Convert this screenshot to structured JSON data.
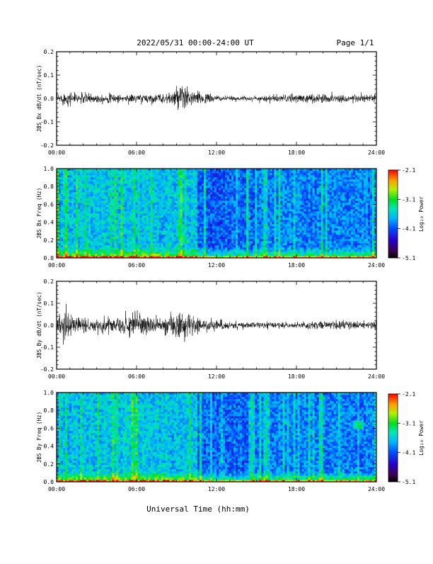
{
  "header": {
    "title": "2022/05/31  00:00-24:00 UT",
    "page": "Page 1/1"
  },
  "x_axis": {
    "label": "Universal Time (hh:mm)",
    "ticks": [
      "00:00",
      "06:00",
      "12:00",
      "18:00",
      "24:00"
    ]
  },
  "colorbar": {
    "label": "Log₁₀ Power",
    "ticks": [
      "-2.1",
      "-3.1",
      "-4.1",
      "-5.1"
    ],
    "range": [
      -5.1,
      -2.1
    ]
  },
  "chart_data": [
    {
      "type": "line",
      "ylabel": "JBS Bx dB/dt (nT/sec)",
      "x_range": [
        0,
        24
      ],
      "ylim": [
        -0.2,
        0.2
      ],
      "yticks": [
        "0.2",
        "0.1",
        "0.0",
        "-0.1",
        "-0.2"
      ],
      "envelope": {
        "x": [
          0,
          0.5,
          1,
          2,
          3,
          4,
          5,
          6,
          7,
          8,
          8.5,
          9,
          9.5,
          10,
          11,
          12,
          13,
          14,
          15,
          16,
          17,
          18,
          19,
          20,
          21,
          22,
          23,
          24
        ],
        "amplitude": [
          0.02,
          0.03,
          0.03,
          0.025,
          0.02,
          0.02,
          0.02,
          0.02,
          0.02,
          0.02,
          0.03,
          0.045,
          0.07,
          0.04,
          0.025,
          0.015,
          0.01,
          0.01,
          0.012,
          0.015,
          0.018,
          0.02,
          0.02,
          0.02,
          0.02,
          0.02,
          0.02,
          0.02
        ]
      }
    },
    {
      "type": "heatmap",
      "ylabel": "JBS Bx Freq (Hz)",
      "x_range": [
        0,
        24
      ],
      "ylim": [
        0,
        1
      ],
      "yticks": [
        "1.0",
        "0.8",
        "0.6",
        "0.4",
        "0.2",
        "0.0"
      ],
      "zlim": [
        -5.1,
        -2.1
      ]
    },
    {
      "type": "line",
      "ylabel": "JBS By dB/dt (nT/sec)",
      "x_range": [
        0,
        24
      ],
      "ylim": [
        -0.2,
        0.2
      ],
      "yticks": [
        "0.2",
        "0.1",
        "0.0",
        "-0.1",
        "-0.2"
      ],
      "envelope": {
        "x": [
          0,
          0.5,
          1,
          2,
          3,
          4,
          5,
          6,
          7,
          8,
          9,
          9.5,
          10,
          11,
          12,
          13,
          14,
          15,
          16,
          17,
          18,
          19,
          20,
          21,
          22,
          23,
          24
        ],
        "amplitude": [
          0.04,
          0.08,
          0.06,
          0.035,
          0.035,
          0.04,
          0.04,
          0.065,
          0.04,
          0.035,
          0.06,
          0.09,
          0.05,
          0.035,
          0.025,
          0.02,
          0.015,
          0.015,
          0.015,
          0.015,
          0.015,
          0.018,
          0.018,
          0.02,
          0.02,
          0.02,
          0.02
        ]
      }
    },
    {
      "type": "heatmap",
      "ylabel": "JBS By Freq (Hz)",
      "x_range": [
        0,
        24
      ],
      "ylim": [
        0,
        1
      ],
      "yticks": [
        "1.0",
        "0.8",
        "0.6",
        "0.4",
        "0.2",
        "0.0"
      ],
      "zlim": [
        -5.1,
        -2.1
      ]
    }
  ]
}
